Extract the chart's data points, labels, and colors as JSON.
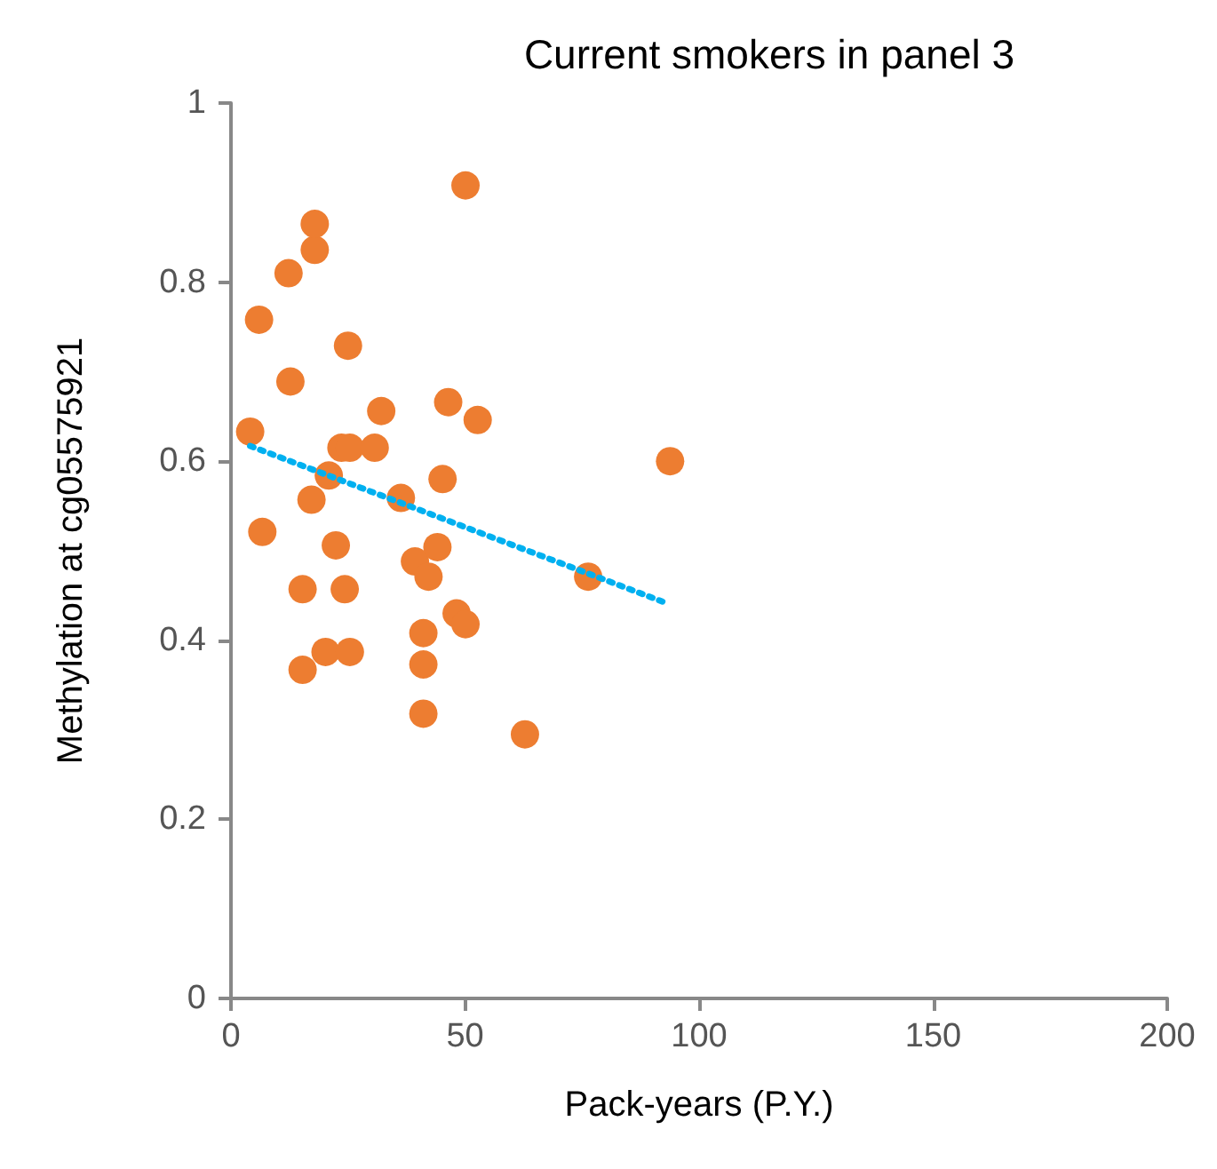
{
  "chart_data": {
    "type": "scatter",
    "title": "Current smokers in panel 3",
    "xlabel": "Pack-years (P.Y.)",
    "ylabel": "Methylation at cg05575921",
    "xlim": [
      0,
      200
    ],
    "xticks": [
      0,
      50,
      100,
      150,
      200
    ],
    "ylim": [
      0,
      1
    ],
    "yticks": [
      0,
      0.2,
      0.4,
      0.6,
      0.8,
      1
    ],
    "grid": false,
    "marker": "circle",
    "series": [
      {
        "color": "#ed7d31",
        "x": [
          4.1,
          6.0,
          6.7,
          12.3,
          12.7,
          15.3,
          15.3,
          17.2,
          17.9,
          17.9,
          20.2,
          20.9,
          22.4,
          23.6,
          24.3,
          25,
          25.4,
          25.4,
          30.7,
          32.1,
          36.3,
          39.3,
          41.1,
          41.1,
          41.1,
          42.2,
          44.1,
          45.2,
          46.4,
          48.2,
          50.1,
          50.1,
          52.7,
          62.8,
          76.3,
          93.8
        ],
        "values": [
          0.633,
          0.758,
          0.521,
          0.81,
          0.689,
          0.457,
          0.367,
          0.557,
          0.836,
          0.865,
          0.387,
          0.584,
          0.506,
          0.615,
          0.457,
          0.729,
          0.615,
          0.387,
          0.615,
          0.656,
          0.559,
          0.488,
          0.318,
          0.373,
          0.408,
          0.471,
          0.504,
          0.58,
          0.666,
          0.43,
          0.418,
          0.908,
          0.646,
          0.295,
          0.471,
          0.6
        ]
      },
      {
        "type": "line",
        "color": "#00b0f0",
        "line_style": "dotted",
        "marker": "none",
        "x": [
          4.1,
          92.3
        ],
        "values": [
          0.617,
          0.443
        ]
      }
    ]
  }
}
